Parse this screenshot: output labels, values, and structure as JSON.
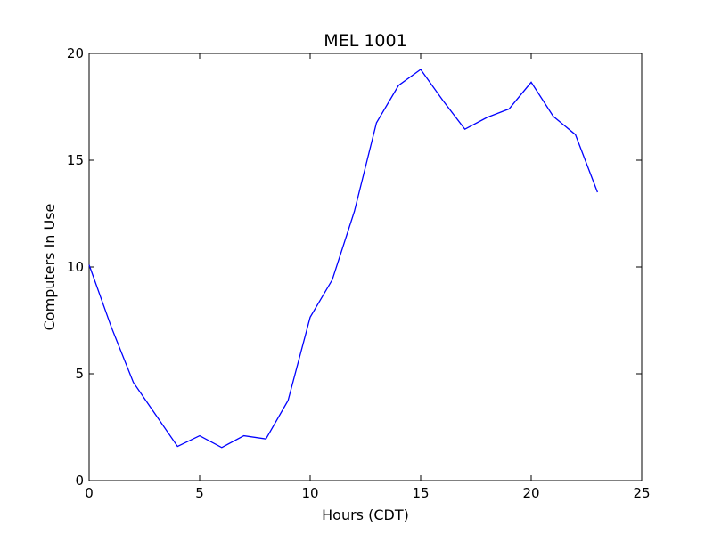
{
  "chart_data": {
    "type": "line",
    "title": "MEL 1001",
    "xlabel": "Hours (CDT)",
    "ylabel": "Computers In Use",
    "xlim": [
      0,
      25
    ],
    "ylim": [
      0,
      20
    ],
    "xticks": [
      0,
      5,
      10,
      15,
      20,
      25
    ],
    "yticks": [
      0,
      5,
      10,
      15,
      20
    ],
    "grid": false,
    "line_color": "#0000ff",
    "series": [
      {
        "x": [
          0,
          1,
          2,
          3,
          4,
          5,
          6,
          7,
          8,
          9,
          10,
          11,
          12,
          13,
          14,
          15,
          16,
          17,
          18,
          19,
          20,
          21,
          22,
          23
        ],
        "values": [
          10.1,
          7.2,
          4.6,
          3.1,
          1.6,
          2.1,
          1.55,
          2.1,
          1.95,
          3.75,
          7.65,
          9.4,
          12.6,
          16.75,
          18.5,
          19.25,
          17.8,
          16.45,
          17.0,
          17.4,
          18.65,
          17.05,
          16.2,
          13.5
        ]
      }
    ]
  }
}
